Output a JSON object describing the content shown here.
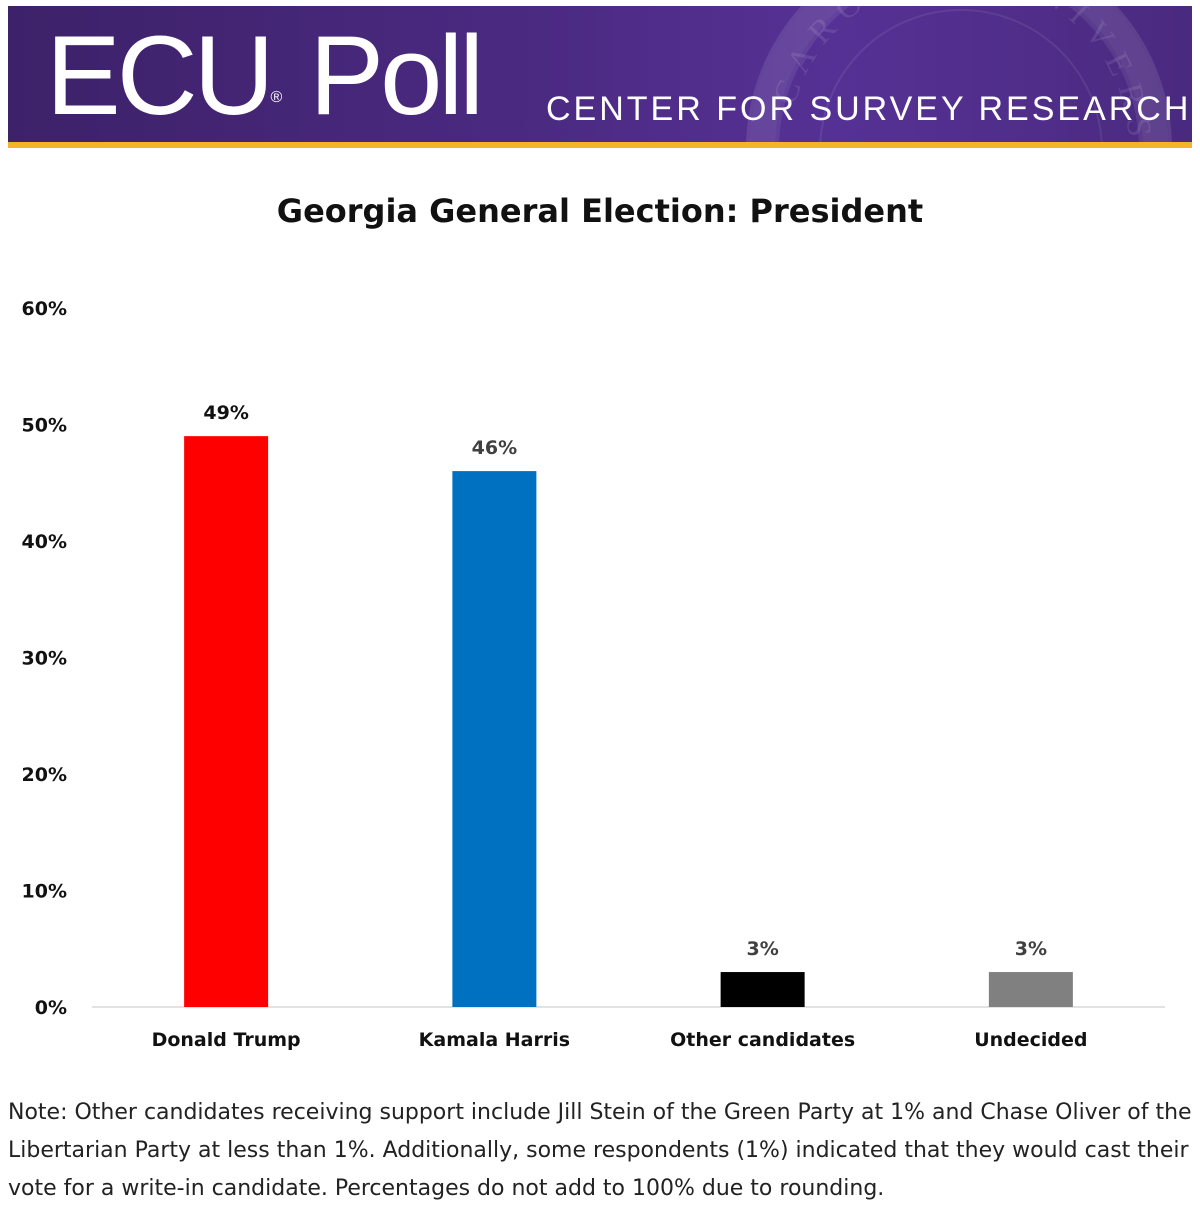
{
  "header": {
    "logo_text": "ECU",
    "logo_mark": "®",
    "logo_text2": "Poll",
    "subtitle": "CENTER FOR SURVEY RESEARCH",
    "seal_text": "CAROLINA UNIVERSITY",
    "brand_color": "#4b2a82",
    "accent_color": "#f2b527"
  },
  "chart_data": {
    "type": "bar",
    "title": "Georgia General Election: President",
    "categories": [
      "Donald Trump",
      "Kamala Harris",
      "Other candidates",
      "Undecided"
    ],
    "values": [
      49,
      46,
      3,
      3
    ],
    "data_labels": [
      "49%",
      "46%",
      "3%",
      "3%"
    ],
    "colors": [
      "#ff0000",
      "#0070c0",
      "#000000",
      "#808080"
    ],
    "ylim": [
      0,
      60
    ],
    "yticks": [
      0,
      10,
      20,
      30,
      40,
      50,
      60
    ],
    "ytick_labels": [
      "0%",
      "10%",
      "20%",
      "30%",
      "40%",
      "50%",
      "60%"
    ],
    "xlabel": "",
    "ylabel": "",
    "grid": false,
    "legend": "none"
  },
  "note": "Note: Other candidates receiving support include Jill Stein of the Green Party at 1% and Chase Oliver of the Libertarian Party at less than 1%. Additionally, some respondents (1%) indicated that they would cast their vote for a write-in candidate. Percentages do not add to 100% due to rounding."
}
